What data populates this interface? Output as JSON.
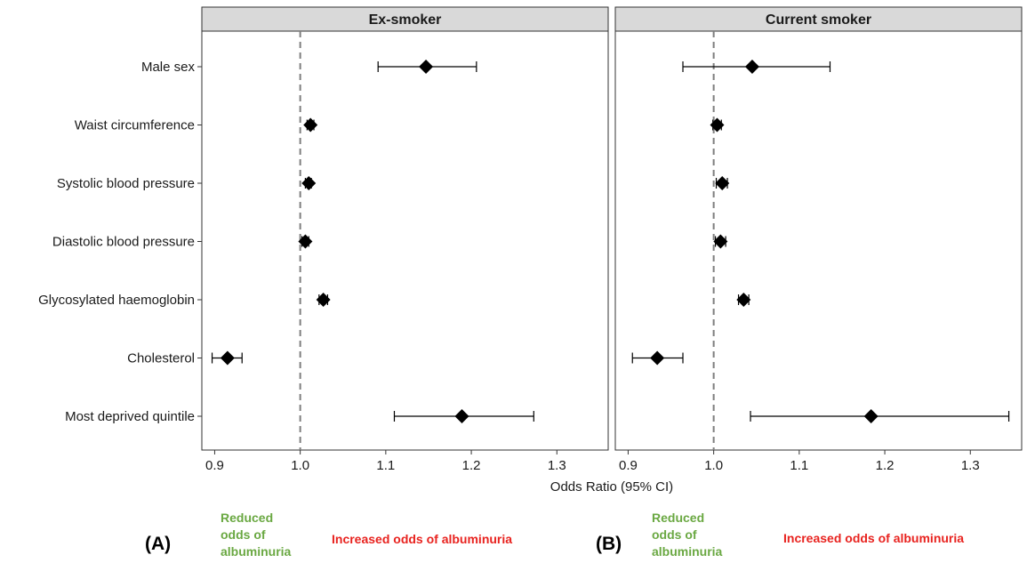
{
  "chart_data": {
    "type": "forest",
    "xlabel": "Odds Ratio (95% CI)",
    "xlim": [
      0.885,
      1.36
    ],
    "xticks": [
      0.9,
      1.0,
      1.1,
      1.2,
      1.3
    ],
    "xtick_labels": [
      "0.9",
      "1.0",
      "1.1",
      "1.2",
      "1.3"
    ],
    "reference_line": 1.0,
    "categories": [
      "Male sex",
      "Waist circumference",
      "Systolic blood pressure",
      "Diastolic blood pressure",
      "Glycosylated haemoglobin",
      "Cholesterol",
      "Most deprived quintile"
    ],
    "panels": [
      {
        "title": "Ex-smoker",
        "estimates": [
          1.147,
          1.012,
          1.01,
          1.006,
          1.027,
          0.915,
          1.189
        ],
        "lower": [
          1.091,
          1.008,
          1.006,
          1.002,
          1.022,
          0.897,
          1.11
        ],
        "upper": [
          1.206,
          1.016,
          1.013,
          1.01,
          1.032,
          0.932,
          1.273
        ]
      },
      {
        "title": "Current smoker",
        "estimates": [
          1.045,
          1.004,
          1.01,
          1.008,
          1.035,
          0.934,
          1.184
        ],
        "lower": [
          0.964,
          0.999,
          1.003,
          1.002,
          1.029,
          0.905,
          1.043
        ],
        "upper": [
          1.136,
          1.009,
          1.016,
          1.014,
          1.041,
          0.964,
          1.345
        ]
      }
    ]
  },
  "annotations": {
    "panel_a": "(A)",
    "panel_b": "(B)",
    "reduced": "Reduced\nodds of\nalbuminuria",
    "increased": "Increased odds of albuminuria"
  },
  "colors": {
    "strip_fill": "#d9d9d9",
    "reference_line": "#7f7f7f",
    "marker": "#000000",
    "reduced_text": "#6aa842",
    "increased_text": "#e8231f"
  }
}
